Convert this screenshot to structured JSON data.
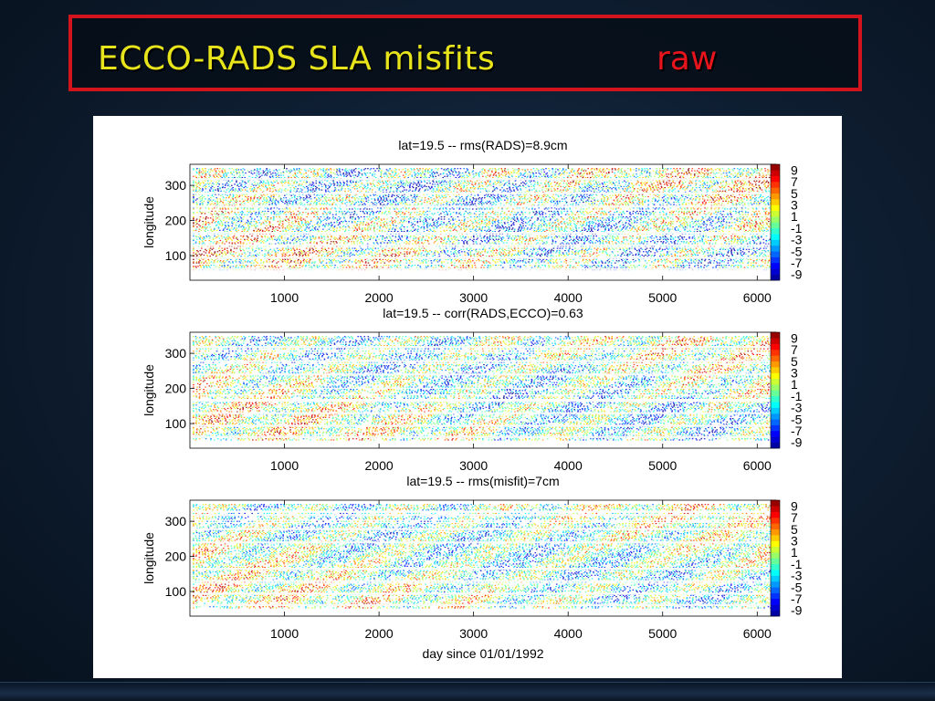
{
  "slide": {
    "title": "ECCO-RADS SLA misfits",
    "tag": "raw"
  },
  "colors": {
    "title": "#e8e41c",
    "tag": "#e8141c",
    "frame": "#d4141c"
  },
  "chart_data": [
    {
      "type": "heatmap",
      "title": "lat=19.5 -- rms(RADS)=8.9cm",
      "xlabel": "",
      "ylabel": "longitude",
      "xlim": [
        0,
        6200
      ],
      "ylim": [
        30,
        360
      ],
      "xticks": [
        1000,
        2000,
        3000,
        4000,
        5000,
        6000
      ],
      "yticks": [
        100,
        200,
        300
      ],
      "colorbar": {
        "range": [
          -10,
          10
        ],
        "tick_labels": [
          "9",
          "7",
          "5",
          "3",
          "1",
          "-1",
          "-3",
          "-5",
          "-7",
          "-9"
        ]
      },
      "amplitude": 1.0
    },
    {
      "type": "heatmap",
      "title": "lat=19.5 -- corr(RADS,ECCO)=0.63",
      "xlabel": "",
      "ylabel": "longitude",
      "xlim": [
        0,
        6200
      ],
      "ylim": [
        30,
        360
      ],
      "xticks": [
        1000,
        2000,
        3000,
        4000,
        5000,
        6000
      ],
      "yticks": [
        100,
        200,
        300
      ],
      "colorbar": {
        "range": [
          -10,
          10
        ],
        "tick_labels": [
          "9",
          "7",
          "5",
          "3",
          "1",
          "-1",
          "-3",
          "-5",
          "-7",
          "-9"
        ]
      },
      "amplitude": 0.85
    },
    {
      "type": "heatmap",
      "title": "lat=19.5 -- rms(misfit)=7cm",
      "xlabel": "day since 01/01/1992",
      "ylabel": "longitude",
      "xlim": [
        0,
        6200
      ],
      "ylim": [
        30,
        360
      ],
      "xticks": [
        1000,
        2000,
        3000,
        4000,
        5000,
        6000
      ],
      "yticks": [
        100,
        200,
        300
      ],
      "colorbar": {
        "range": [
          -10,
          10
        ],
        "tick_labels": [
          "9",
          "7",
          "5",
          "3",
          "1",
          "-1",
          "-3",
          "-5",
          "-7",
          "-9"
        ]
      },
      "amplitude": 0.8
    }
  ]
}
